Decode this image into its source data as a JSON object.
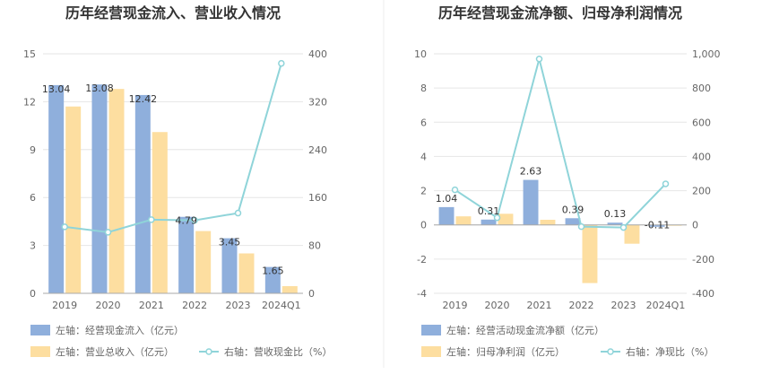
{
  "chart_data": [
    {
      "type": "bar",
      "title": "历年经营现金流入、营业收入情况",
      "categories": [
        "2019",
        "2020",
        "2021",
        "2022",
        "2023",
        "2024Q1"
      ],
      "y_left_ticks": [
        "0",
        "3",
        "6",
        "9",
        "12",
        "15"
      ],
      "y_right_ticks": [
        "0",
        "80",
        "160",
        "240",
        "320",
        "400"
      ],
      "ylim_left": [
        0,
        15
      ],
      "ylim_right": [
        0,
        400
      ],
      "grid": true,
      "legend_position": "bottom",
      "series": [
        {
          "name": "左轴：经营现金流入（亿元）",
          "type": "bar",
          "axis": "left",
          "color": "#8fafdc",
          "values": [
            13.04,
            13.08,
            12.42,
            4.79,
            3.45,
            1.65
          ]
        },
        {
          "name": "左轴：营业总收入（亿元）",
          "type": "bar",
          "axis": "left",
          "color": "#fddea0",
          "values": [
            11.7,
            12.8,
            10.1,
            3.9,
            2.5,
            0.45
          ]
        },
        {
          "name": "右轴：营收现金比（%）",
          "type": "line",
          "axis": "right",
          "color": "#8fd4d9",
          "values": [
            111,
            102,
            123,
            122,
            134,
            384
          ]
        }
      ],
      "data_labels": [
        "13.04",
        "13.08",
        "12.42",
        "4.79",
        "3.45",
        "1.65"
      ]
    },
    {
      "type": "bar",
      "title": "历年经营现金流净额、归母净利润情况",
      "categories": [
        "2019",
        "2020",
        "2021",
        "2022",
        "2023",
        "2024Q1"
      ],
      "y_left_ticks": [
        "-4",
        "-2",
        "0",
        "2",
        "4",
        "6",
        "8",
        "10"
      ],
      "y_right_ticks": [
        "-400",
        "-200",
        "0",
        "200",
        "400",
        "600",
        "800",
        "1,000"
      ],
      "ylim_left": [
        -4,
        10
      ],
      "ylim_right": [
        -400,
        1000
      ],
      "grid": true,
      "legend_position": "bottom",
      "series": [
        {
          "name": "左轴：经营活动现金流净额（亿元）",
          "type": "bar",
          "axis": "left",
          "color": "#8fafdc",
          "values": [
            1.04,
            0.31,
            2.63,
            0.39,
            0.13,
            -0.11
          ]
        },
        {
          "name": "左轴：归母净利润（亿元）",
          "type": "bar",
          "axis": "left",
          "color": "#fddea0",
          "values": [
            0.5,
            0.65,
            0.3,
            -3.4,
            -1.1,
            -0.05
          ]
        },
        {
          "name": "右轴：净现比（%）",
          "type": "line",
          "axis": "right",
          "color": "#8fd4d9",
          "values": [
            205,
            42,
            970,
            -10,
            -15,
            240
          ]
        }
      ],
      "data_labels": [
        "1.04",
        "0.31",
        "2.63",
        "0.39",
        "0.13",
        "-0.11"
      ]
    }
  ]
}
